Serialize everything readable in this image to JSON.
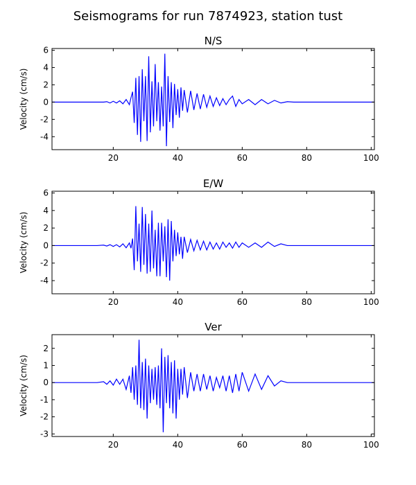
{
  "title": "Seismograms for run 7874923, station tust",
  "chart_data": [
    {
      "type": "line",
      "title": "N/S",
      "y_label": "Velocity (cm/s)",
      "xlim": [
        1,
        101
      ],
      "ylim": [
        -5.5,
        6.2
      ],
      "xticks": [
        20,
        40,
        60,
        80,
        100
      ],
      "yticks": [
        -4,
        -2,
        0,
        2,
        4,
        6
      ],
      "series": [
        {
          "color": "#0000ff",
          "x": [
            1,
            5,
            10,
            15,
            17,
            18,
            19,
            20,
            21,
            22,
            23,
            24,
            25,
            25.5,
            26,
            26.5,
            27,
            27.5,
            28,
            28.5,
            29,
            29.5,
            30,
            30.5,
            31,
            31.5,
            32,
            32.5,
            33,
            33.5,
            34,
            34.5,
            35,
            35.5,
            36,
            36.5,
            37,
            37.5,
            38,
            38.5,
            39,
            39.5,
            40,
            40.5,
            41,
            41.5,
            42,
            43,
            44,
            45,
            46,
            47,
            48,
            49,
            50,
            51,
            52,
            53,
            54,
            55,
            56,
            57,
            58,
            59,
            60,
            62,
            64,
            66,
            68,
            70,
            72,
            74,
            76,
            80,
            90,
            101
          ],
          "values": [
            0,
            0,
            0,
            0,
            0,
            0.05,
            -0.1,
            0.1,
            -0.1,
            0.15,
            -0.2,
            0.3,
            -0.3,
            0.5,
            1.2,
            -2.4,
            2.8,
            -3.8,
            3.0,
            -4.6,
            3.8,
            -2.2,
            3.0,
            -4.5,
            5.3,
            -3.5,
            2.4,
            -2.8,
            4.4,
            -2.2,
            2.3,
            -3.3,
            1.8,
            -2.8,
            5.6,
            -5.1,
            3.0,
            -2.3,
            2.3,
            -3.0,
            2.1,
            -1.5,
            1.5,
            -1.8,
            1.7,
            -1.0,
            1.4,
            -1.2,
            1.3,
            -0.9,
            1.0,
            -0.8,
            0.9,
            -0.6,
            0.7,
            -0.5,
            0.5,
            -0.4,
            0.4,
            -0.3,
            0.3,
            0.7,
            -0.5,
            0.3,
            -0.2,
            0.3,
            -0.3,
            0.3,
            -0.2,
            0.2,
            -0.1,
            0.05,
            0,
            0,
            0,
            0
          ]
        }
      ]
    },
    {
      "type": "line",
      "title": "E/W",
      "y_label": "Velocity (cm/s)",
      "xlim": [
        1,
        101
      ],
      "ylim": [
        -5.5,
        6.2
      ],
      "xticks": [
        20,
        40,
        60,
        80,
        100
      ],
      "yticks": [
        -4,
        -2,
        0,
        2,
        4,
        6
      ],
      "series": [
        {
          "color": "#0000ff",
          "x": [
            1,
            5,
            10,
            15,
            17,
            18,
            19,
            20,
            21,
            22,
            23,
            24,
            25,
            25.5,
            26,
            26.5,
            27,
            27.5,
            28,
            28.5,
            29,
            29.5,
            30,
            30.5,
            31,
            31.5,
            32,
            32.5,
            33,
            33.5,
            34,
            34.5,
            35,
            35.5,
            36,
            36.5,
            37,
            37.5,
            38,
            38.5,
            39,
            39.5,
            40,
            40.5,
            41,
            41.5,
            42,
            43,
            44,
            45,
            46,
            47,
            48,
            49,
            50,
            51,
            52,
            53,
            54,
            55,
            56,
            57,
            58,
            59,
            60,
            62,
            64,
            66,
            68,
            70,
            72,
            74,
            76,
            80,
            90,
            101
          ],
          "values": [
            0,
            0,
            0,
            0,
            0.05,
            -0.05,
            0.1,
            -0.1,
            0.1,
            -0.15,
            0.2,
            -0.25,
            0.3,
            -0.3,
            0.8,
            -2.8,
            4.5,
            -1.8,
            2.5,
            -3.0,
            4.4,
            -2.2,
            3.6,
            -3.2,
            2.5,
            -3.0,
            4.0,
            -2.6,
            1.8,
            -3.5,
            2.6,
            -3.5,
            2.6,
            -1.8,
            2.2,
            -3.6,
            3.0,
            -4.0,
            2.8,
            -1.8,
            1.8,
            -1.2,
            1.5,
            -1.0,
            1.0,
            -1.5,
            1.0,
            -0.8,
            0.7,
            -0.6,
            0.6,
            -0.5,
            0.5,
            -0.5,
            0.4,
            -0.4,
            0.3,
            -0.4,
            0.4,
            -0.2,
            0.3,
            -0.3,
            0.4,
            -0.2,
            0.3,
            -0.2,
            0.3,
            -0.2,
            0.4,
            -0.1,
            0.2,
            0,
            0,
            0,
            0,
            0
          ]
        }
      ]
    },
    {
      "type": "line",
      "title": "Ver",
      "y_label": "Velocity (cm/s)",
      "xlim": [
        1,
        101
      ],
      "ylim": [
        -3.15,
        2.8
      ],
      "xticks": [
        20,
        40,
        60,
        80,
        100
      ],
      "yticks": [
        -3,
        -2,
        -1,
        0,
        1,
        2
      ],
      "series": [
        {
          "color": "#0000ff",
          "x": [
            1,
            5,
            10,
            15,
            17,
            18,
            19,
            20,
            21,
            22,
            23,
            24,
            25,
            25.5,
            26,
            26.5,
            27,
            27.5,
            28,
            28.5,
            29,
            29.5,
            30,
            30.5,
            31,
            31.5,
            32,
            32.5,
            33,
            33.5,
            34,
            34.5,
            35,
            35.5,
            36,
            36.5,
            37,
            37.5,
            38,
            38.5,
            39,
            39.5,
            40,
            40.5,
            41,
            41.5,
            42,
            43,
            44,
            45,
            46,
            47,
            48,
            49,
            50,
            51,
            52,
            53,
            54,
            55,
            56,
            57,
            58,
            59,
            60,
            62,
            64,
            66,
            68,
            70,
            72,
            74,
            76,
            80,
            90,
            101
          ],
          "values": [
            0,
            0,
            0,
            0,
            0.05,
            -0.1,
            0.1,
            -0.15,
            0.2,
            -0.1,
            0.2,
            -0.4,
            0.4,
            -0.6,
            0.9,
            -1.0,
            1.0,
            -1.3,
            2.5,
            -1.5,
            1.2,
            -1.6,
            1.4,
            -2.1,
            1.0,
            -1.2,
            0.8,
            -1.0,
            0.9,
            -1.3,
            1.0,
            -1.5,
            2.0,
            -2.9,
            1.5,
            -1.2,
            1.6,
            -1.5,
            1.2,
            -1.8,
            1.3,
            -2.1,
            0.8,
            -1.0,
            0.8,
            -0.7,
            0.9,
            -0.9,
            0.6,
            -0.5,
            0.5,
            -0.5,
            0.5,
            -0.4,
            0.4,
            -0.5,
            0.3,
            -0.3,
            0.4,
            -0.5,
            0.4,
            -0.6,
            0.5,
            -0.5,
            0.6,
            -0.5,
            0.5,
            -0.4,
            0.4,
            -0.2,
            0.1,
            0,
            0,
            0,
            0,
            0
          ]
        }
      ]
    }
  ]
}
